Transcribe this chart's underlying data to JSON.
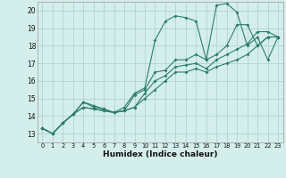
{
  "xlabel": "Humidex (Indice chaleur)",
  "xlim": [
    -0.5,
    23.5
  ],
  "ylim": [
    12.5,
    20.5
  ],
  "yticks": [
    13,
    14,
    15,
    16,
    17,
    18,
    19,
    20
  ],
  "xticks": [
    0,
    1,
    2,
    3,
    4,
    5,
    6,
    7,
    8,
    9,
    10,
    11,
    12,
    13,
    14,
    15,
    16,
    17,
    18,
    19,
    20,
    21,
    22,
    23
  ],
  "bg_color": "#d4eeec",
  "grid_color": "#b0d4d2",
  "line_color": "#2e7d6e",
  "lines": [
    [
      0,
      13.3,
      1,
      13.0,
      2,
      13.6,
      3,
      14.1,
      4,
      14.8,
      5,
      14.5,
      6,
      14.4,
      7,
      14.2,
      8,
      14.5,
      9,
      15.3,
      10,
      15.6,
      11,
      18.3,
      12,
      19.4,
      13,
      19.7,
      14,
      19.6,
      15,
      19.4,
      16,
      17.2,
      17,
      20.3,
      18,
      20.4,
      19,
      19.9,
      20,
      18.0,
      21,
      18.5,
      22,
      17.2,
      23,
      18.5
    ],
    [
      0,
      13.3,
      1,
      13.0,
      2,
      13.6,
      3,
      14.1,
      4,
      14.8,
      5,
      14.6,
      6,
      14.4,
      7,
      14.2,
      8,
      14.3,
      9,
      15.2,
      10,
      15.5,
      11,
      16.5,
      12,
      16.6,
      13,
      17.2,
      14,
      17.2,
      15,
      17.5,
      16,
      17.2,
      17,
      17.5,
      18,
      18.0,
      19,
      19.2,
      20,
      19.2,
      21,
      18.0,
      22,
      18.5,
      23,
      18.5
    ],
    [
      0,
      13.3,
      1,
      13.0,
      2,
      13.6,
      3,
      14.1,
      4,
      14.5,
      5,
      14.4,
      6,
      14.3,
      7,
      14.2,
      8,
      14.3,
      9,
      14.5,
      10,
      15.3,
      11,
      16.0,
      12,
      16.3,
      13,
      16.8,
      14,
      16.9,
      15,
      17.0,
      16,
      16.7,
      17,
      17.2,
      18,
      17.5,
      19,
      17.8,
      20,
      18.1,
      21,
      18.8,
      22,
      18.8,
      23,
      18.5
    ],
    [
      0,
      13.3,
      1,
      13.0,
      2,
      13.6,
      3,
      14.1,
      4,
      14.5,
      5,
      14.4,
      6,
      14.3,
      7,
      14.2,
      8,
      14.3,
      9,
      14.5,
      10,
      15.0,
      11,
      15.5,
      12,
      16.0,
      13,
      16.5,
      14,
      16.5,
      15,
      16.7,
      16,
      16.5,
      17,
      16.8,
      18,
      17.0,
      19,
      17.2,
      20,
      17.5,
      21,
      18.0,
      22,
      18.5,
      23,
      18.5
    ]
  ]
}
